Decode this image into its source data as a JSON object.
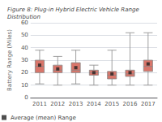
{
  "chart_data": {
    "type": "boxplot",
    "title": "Figure 8: Plug-in Hybrid Electric Vehicle Range Distribution",
    "ylabel": "Battery Range (Miles)",
    "categories": [
      "2011",
      "2012",
      "2013",
      "2014",
      "2015",
      "2016",
      "2017"
    ],
    "values": [
      [
        11,
        20,
        25,
        30,
        38
      ],
      [
        10,
        20,
        22,
        26,
        33
      ],
      [
        11,
        20,
        22,
        28,
        38
      ],
      [
        10,
        18,
        20,
        22,
        26
      ],
      [
        10,
        15,
        18,
        21,
        38
      ],
      [
        10,
        17,
        19,
        22,
        52
      ],
      [
        10,
        21,
        25,
        30,
        52
      ]
    ],
    "color": "#d9756a",
    "series": [
      {
        "name": "Average (mean) Range",
        "type": "scatter",
        "marker": "square",
        "color": "#222222",
        "values": [
          26,
          23,
          24,
          20,
          19,
          20,
          27
        ]
      }
    ],
    "ylim": [
      0,
      60
    ],
    "yticks": [
      0,
      10,
      20,
      30,
      40,
      50,
      60
    ],
    "grid": true,
    "legend": "lower left"
  }
}
